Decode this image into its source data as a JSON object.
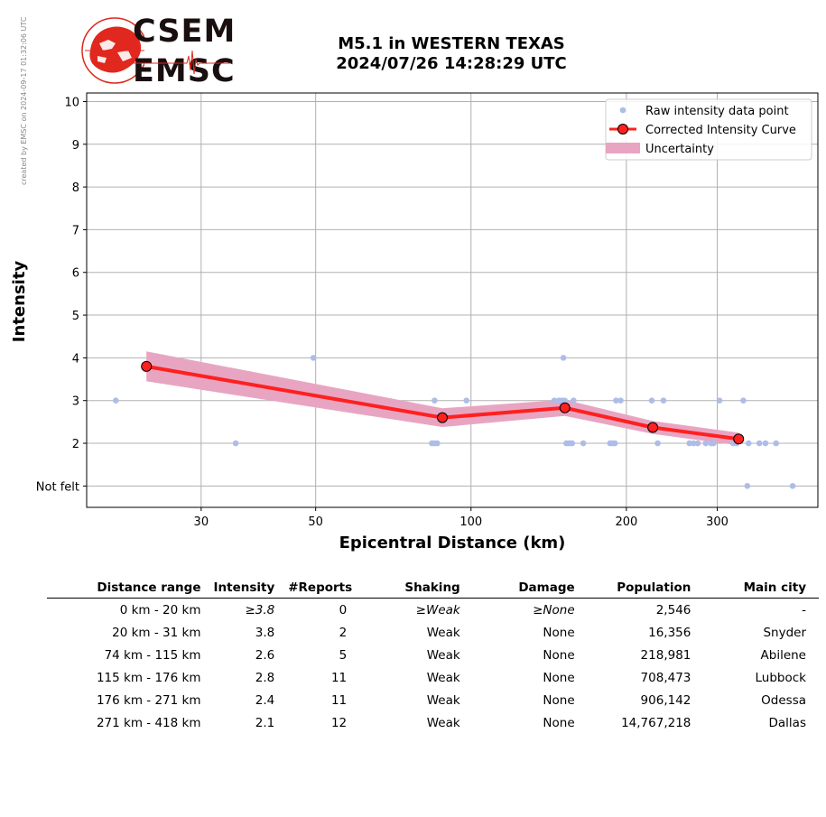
{
  "watermark": "created by EMSC on 2024-09-17 01:32:06 UTC",
  "logo": {
    "line1": "CSEM",
    "line2": "EMSC"
  },
  "title": {
    "line1": "M5.1 in WESTERN TEXAS",
    "line2": "2024/07/26 14:28:29 UTC"
  },
  "colors": {
    "raw": "#aebde8",
    "curve": "#ff2020",
    "uncertainty": "#e8a5c2",
    "logo_red": "#e0281e"
  },
  "chart_data": {
    "type": "scatter",
    "xlabel": "Epicentral Distance (km)",
    "ylabel": "Intensity",
    "x_scale": "log",
    "xlim": [
      18,
      470
    ],
    "ylim": [
      0.5,
      10.2
    ],
    "x_ticks": [
      30,
      50,
      100,
      200,
      300
    ],
    "y_ticks": [
      1,
      2,
      3,
      4,
      5,
      6,
      7,
      8,
      9,
      10
    ],
    "y_tick_labels": [
      "Not felt",
      "2",
      "3",
      "4",
      "5",
      "6",
      "7",
      "8",
      "9",
      "10"
    ],
    "grid": true,
    "legend_position": "top-right",
    "legend": [
      "Raw intensity data point",
      "Corrected Intensity Curve",
      "Uncertainty"
    ],
    "raw_points": [
      [
        20.5,
        3
      ],
      [
        35,
        2
      ],
      [
        49.5,
        4
      ],
      [
        84,
        2
      ],
      [
        85,
        2
      ],
      [
        86,
        2
      ],
      [
        85,
        3
      ],
      [
        98,
        3
      ],
      [
        145,
        3
      ],
      [
        148,
        3
      ],
      [
        150,
        3
      ],
      [
        151,
        4
      ],
      [
        152,
        3
      ],
      [
        153,
        2
      ],
      [
        155,
        2
      ],
      [
        157,
        2
      ],
      [
        158,
        3
      ],
      [
        165,
        2
      ],
      [
        186,
        2
      ],
      [
        188,
        2
      ],
      [
        190,
        2
      ],
      [
        191,
        3
      ],
      [
        195,
        3
      ],
      [
        224,
        3
      ],
      [
        230,
        2
      ],
      [
        236,
        3
      ],
      [
        265,
        2
      ],
      [
        270,
        2
      ],
      [
        275,
        2
      ],
      [
        285,
        2
      ],
      [
        292,
        2
      ],
      [
        295,
        2
      ],
      [
        303,
        3
      ],
      [
        322,
        2
      ],
      [
        327,
        2
      ],
      [
        337,
        3
      ],
      [
        343,
        1
      ],
      [
        345,
        2
      ],
      [
        362,
        2
      ],
      [
        372,
        2
      ],
      [
        390,
        2
      ],
      [
        420,
        1
      ]
    ],
    "corrected_curve": {
      "x": [
        23.5,
        88,
        152,
        225,
        330
      ],
      "y": [
        3.8,
        2.6,
        2.83,
        2.37,
        2.1
      ],
      "uncertainty_upper": [
        4.15,
        2.82,
        3.02,
        2.52,
        2.25
      ],
      "uncertainty_lower": [
        3.45,
        2.38,
        2.64,
        2.22,
        1.95
      ]
    }
  },
  "table": {
    "headers": [
      "Distance range",
      "Intensity",
      "#Reports",
      "Shaking",
      "Damage",
      "Population",
      "Main city"
    ],
    "rows": [
      [
        "0 km -   20 km",
        "≥3.8",
        "0",
        "≥Weak",
        "≥None",
        "2,546",
        "-"
      ],
      [
        "20 km -   31 km",
        "3.8",
        "2",
        "Weak",
        "None",
        "16,356",
        "Snyder"
      ],
      [
        "74 km -  115 km",
        "2.6",
        "5",
        "Weak",
        "None",
        "218,981",
        "Abilene"
      ],
      [
        "115 km -  176 km",
        "2.8",
        "11",
        "Weak",
        "None",
        "708,473",
        "Lubbock"
      ],
      [
        "176 km -  271 km",
        "2.4",
        "11",
        "Weak",
        "None",
        "906,142",
        "Odessa"
      ],
      [
        "271 km -  418 km",
        "2.1",
        "12",
        "Weak",
        "None",
        "14,767,218",
        "Dallas"
      ]
    ]
  }
}
